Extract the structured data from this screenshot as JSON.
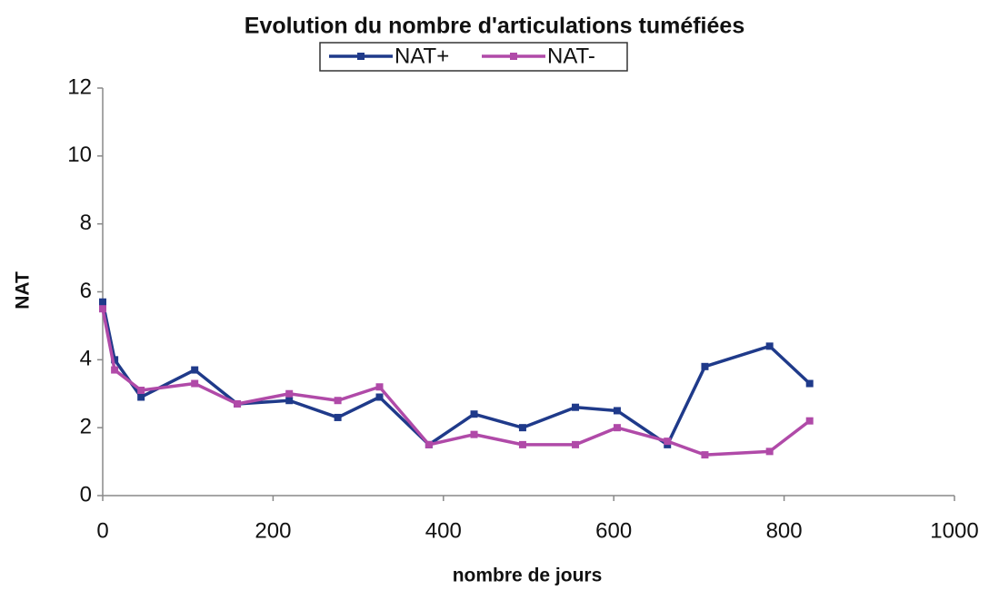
{
  "chart_data": {
    "type": "line",
    "title": "Evolution du nombre d'articulations tuméfiées",
    "xlabel": "nombre de jours",
    "ylabel": "NAT",
    "xlim": [
      0,
      1000
    ],
    "xticks": [
      0,
      200,
      400,
      600,
      800,
      1000
    ],
    "ylim": [
      0,
      12
    ],
    "yticks": [
      0,
      2,
      4,
      6,
      8,
      10,
      12
    ],
    "grid": false,
    "legend": "top",
    "x": [
      0,
      14,
      45,
      108,
      158,
      219,
      276,
      325,
      383,
      436,
      493,
      555,
      604,
      663,
      707,
      783,
      830
    ],
    "series": [
      {
        "name": "NAT+",
        "color": "#1f3a8a",
        "values": [
          5.7,
          4.0,
          2.9,
          3.7,
          2.7,
          2.8,
          2.3,
          2.9,
          1.5,
          2.4,
          2.0,
          2.6,
          2.5,
          1.5,
          3.8,
          4.4,
          3.3
        ]
      },
      {
        "name": "NAT-",
        "color": "#b04aa8",
        "values": [
          5.5,
          3.7,
          3.1,
          3.3,
          2.7,
          3.0,
          2.8,
          3.2,
          1.5,
          1.8,
          1.5,
          1.5,
          2.0,
          1.6,
          1.2,
          1.3,
          2.2
        ]
      }
    ]
  }
}
